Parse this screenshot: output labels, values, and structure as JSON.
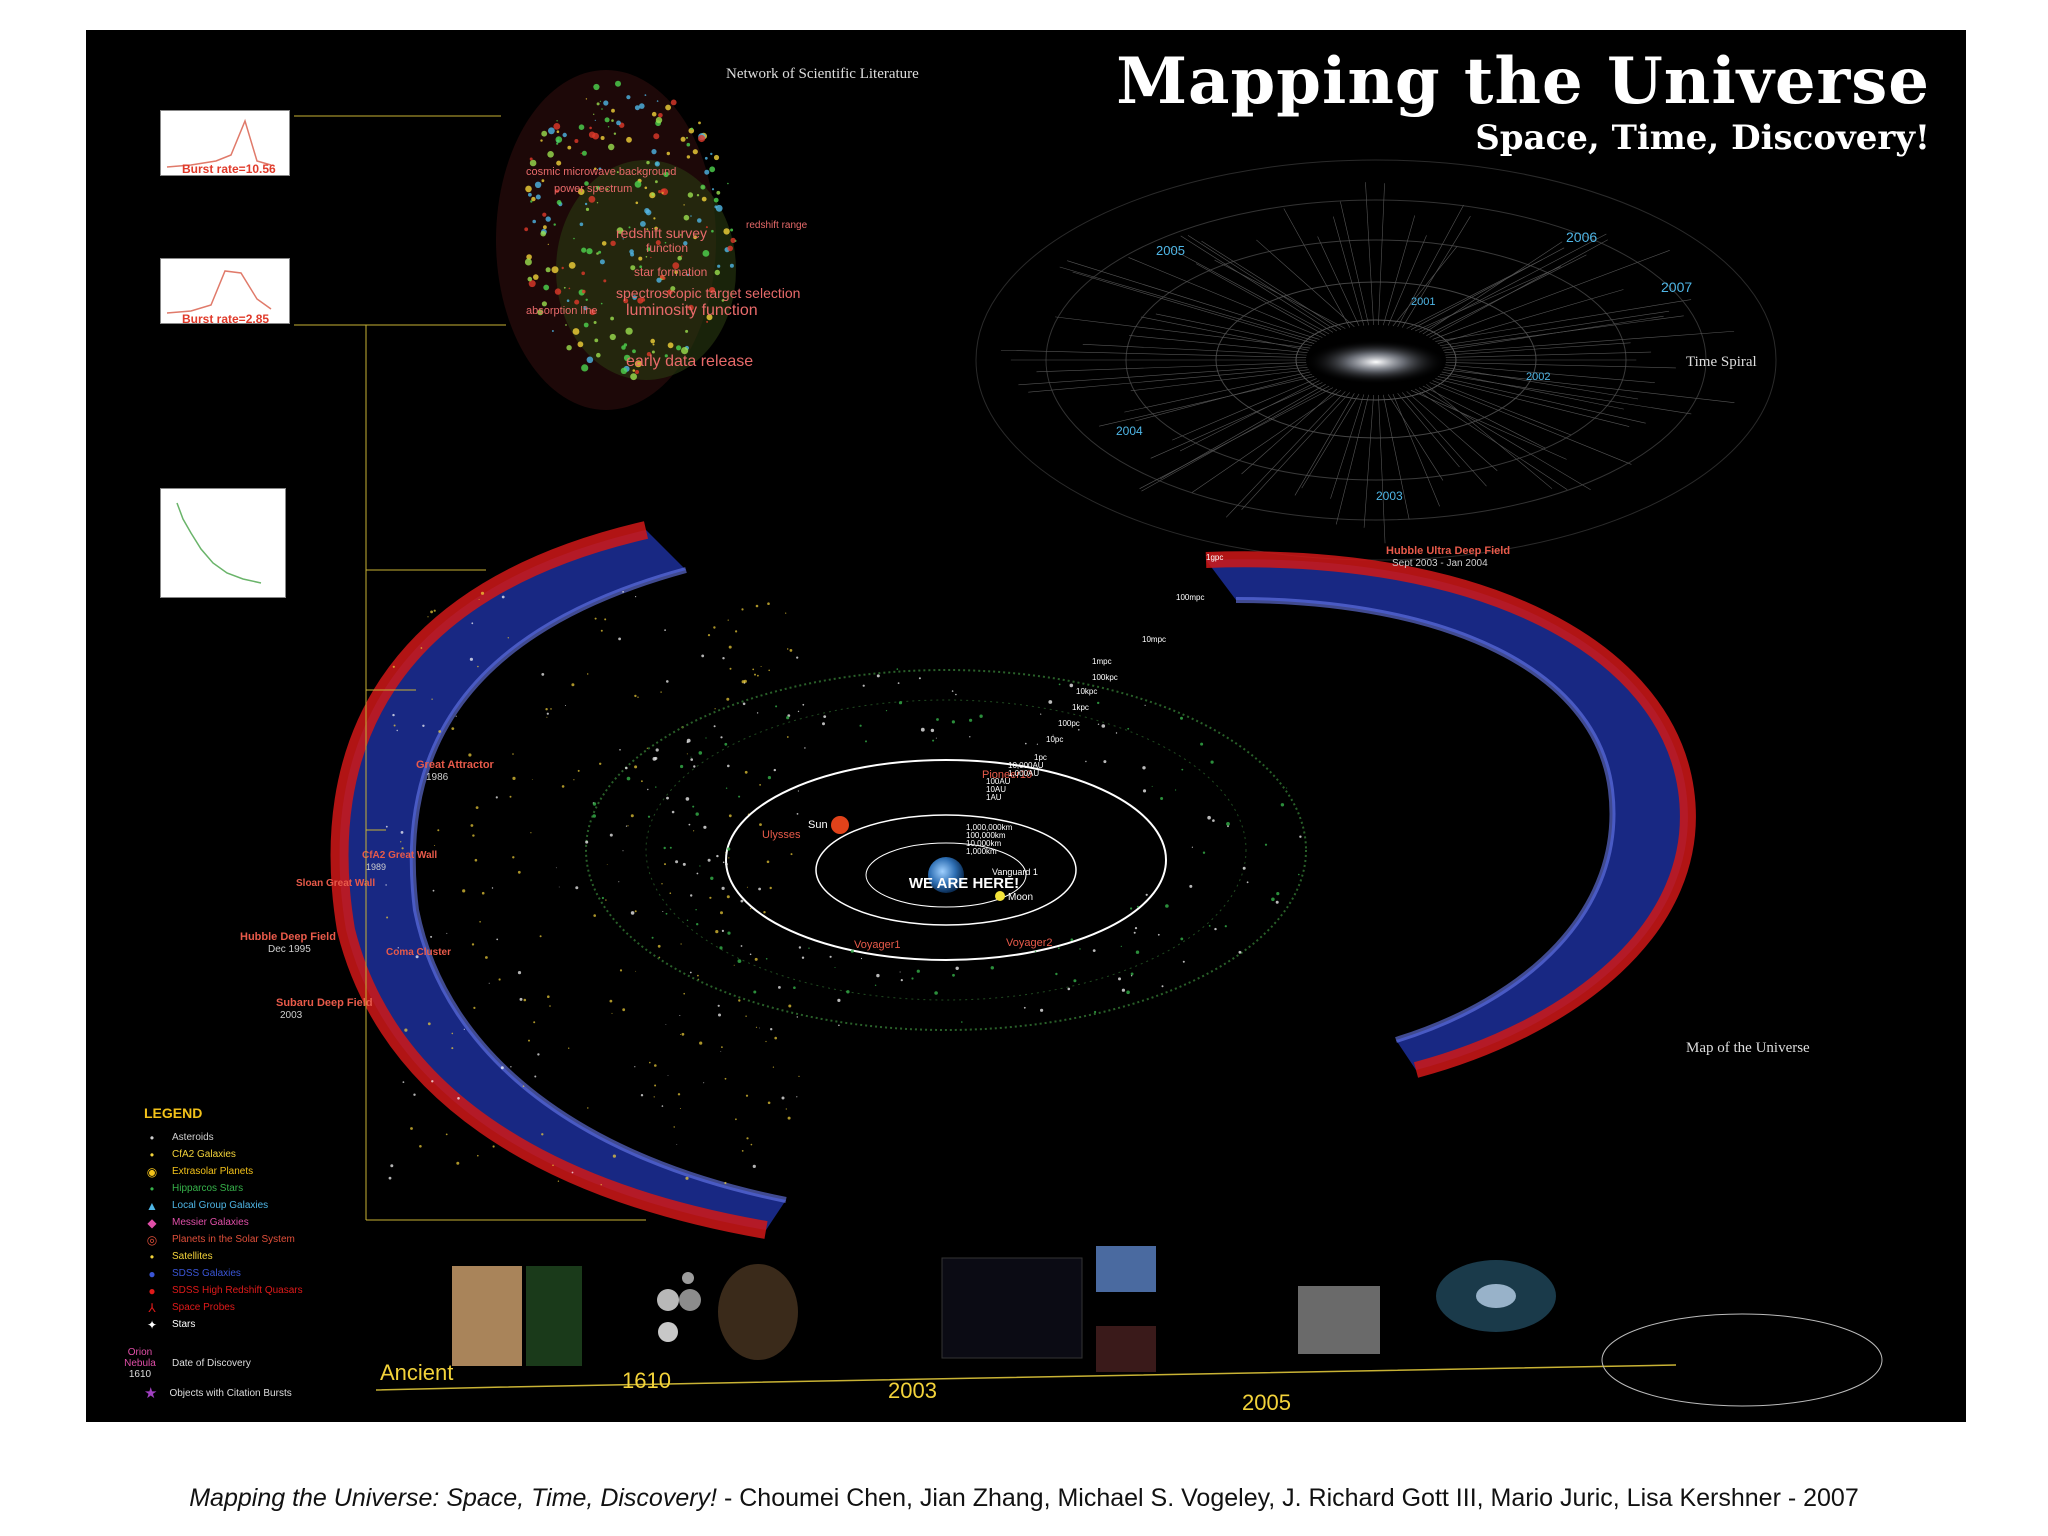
{
  "poster": {
    "title": "Mapping the Universe",
    "subtitle": "Space, Time, Discovery!",
    "network_heading": "Network of Scientific Literature",
    "time_spiral_heading": "Time Spiral",
    "map_heading": "Map of the Universe",
    "burst_rate_1": "Burst rate=10.56",
    "burst_rate_2": "Burst rate=2.85"
  },
  "network_labels": {
    "cosmic": "cosmic microwave background",
    "power": "power spectrum",
    "redshift_survey": "redshift survey",
    "function": "function",
    "redshift_range": "redshift range",
    "star_formation": "star formation",
    "spectroscopic": "spectroscopic target selection",
    "luminosity": "luminosity function",
    "absorption": "absorption line",
    "early": "early data release"
  },
  "spiral_years": [
    "2001",
    "2002",
    "2003",
    "2004",
    "2005",
    "2006",
    "2007"
  ],
  "map_labels": {
    "we_are_here": "WE ARE HERE!",
    "moon": "Moon",
    "sun": "Sun",
    "vanguard": "Vanguard 1",
    "pioneer": "Pioneer10",
    "ulysses": "Ulysses",
    "voyager1": "Voyager1",
    "voyager2": "Voyager2",
    "great_attractor": "Great Attractor",
    "great_attractor_year": "1986",
    "cfa2": "CfA2 Great Wall",
    "cfa2_year": "1989",
    "sloan": "Sloan Great Wall",
    "coma": "Coma Cluster",
    "hubble_deep": "Hubble Deep Field",
    "hubble_deep_date": "Dec 1995",
    "subaru": "Subaru Deep Field",
    "subaru_year": "2003",
    "hudf": "Hubble Ultra Deep Field",
    "hudf_date": "Sept 2003 - Jan 2004",
    "km1m": "1,000,000km",
    "km100k": "100,000km",
    "km10k": "10,000km",
    "km1000": "1,000km",
    "au1": "1AU",
    "au10": "10AU",
    "au100": "100AU",
    "au1000": "1,000AU",
    "au10000": "10,000AU",
    "pc1": "1pc",
    "pc10": "10pc",
    "pc100": "100pc",
    "kpc1": "1kpc",
    "kpc10": "10kpc",
    "kpc100": "100kpc",
    "mpc1": "1mpc",
    "mpc10": "10mpc",
    "mpc100": "100mpc",
    "gpc1": "1gpc"
  },
  "legend": {
    "title": "LEGEND",
    "items": [
      {
        "label": "Asteroids",
        "color": "#cfcfcf",
        "symbol": "•"
      },
      {
        "label": "CfA2 Galaxies",
        "color": "#f3d33a",
        "symbol": "•"
      },
      {
        "label": "Extrasolar Planets",
        "color": "#f3c21a",
        "symbol": "◉"
      },
      {
        "label": "Hipparcos Stars",
        "color": "#36b24a",
        "symbol": "•"
      },
      {
        "label": "Local Group Galaxies",
        "color": "#4fb6e6",
        "symbol": "▲"
      },
      {
        "label": "Messier Galaxies",
        "color": "#e04fa8",
        "symbol": "◆"
      },
      {
        "label": "Planets in the Solar System",
        "color": "#e04f3a",
        "symbol": "◎"
      },
      {
        "label": "Satellites",
        "color": "#f3d33a",
        "symbol": "•"
      },
      {
        "label": "SDSS Galaxies",
        "color": "#3a55d6",
        "symbol": "●"
      },
      {
        "label": "SDSS High Redshift Quasars",
        "color": "#e01a1a",
        "symbol": "●"
      },
      {
        "label": "Space Probes",
        "color": "#e01a1a",
        "symbol": "⅄"
      },
      {
        "label": "Stars",
        "color": "#ffffff",
        "symbol": "✦"
      }
    ],
    "orion_label": "Orion Nebula",
    "orion_year": "1610",
    "date_label": "Date of Discovery",
    "burst_label": "Objects with Citation Bursts"
  },
  "timeline": [
    "Ancient",
    "1610",
    "2003",
    "2005"
  ],
  "caption": {
    "title": "Mapping the Universe: Space, Time, Discovery!",
    "rest": " - Choumei Chen, Jian Zhang, Michael S. Vogeley, J. Richard Gott III, Mario Juric, Lisa Kershner - 2007"
  },
  "colors": {
    "poster_bg": "#000000",
    "sdss_blue": "#3a55d6",
    "quasar_red": "#e01a1a",
    "label_yellow": "#f3d33a",
    "label_red": "#e85a4a"
  }
}
